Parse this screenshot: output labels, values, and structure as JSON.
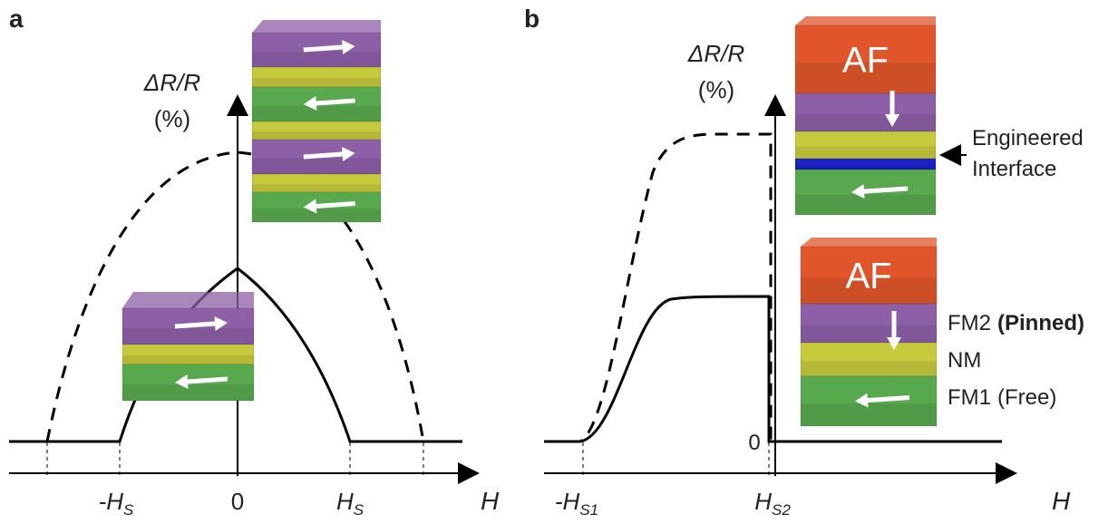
{
  "panel_a": {
    "label": "a",
    "y_axis_label": "ΔR/R",
    "y_axis_unit": "(%)",
    "x_axis_label": "H",
    "ticks": [
      {
        "main": "-H",
        "sub": "S"
      },
      {
        "main": "0"
      },
      {
        "main": "H",
        "sub": "S"
      }
    ]
  },
  "panel_b": {
    "label": "b",
    "y_axis_label": "ΔR/R",
    "y_axis_unit": "(%)",
    "x_axis_label": "H",
    "zero_label": "0",
    "ticks": [
      {
        "main": "-H",
        "sub": "S1"
      },
      {
        "main": "H",
        "sub": "S2"
      }
    ],
    "top_stack": {
      "af": "AF",
      "annotation": [
        "Engineered",
        "Interface"
      ]
    },
    "bottom_stack": {
      "af": "AF",
      "layers": [
        {
          "name": "FM2",
          "qualifier": "(Pinned)"
        },
        {
          "name": "NM"
        },
        {
          "name": "FM1",
          "qualifier": "(Free)"
        }
      ]
    }
  }
}
